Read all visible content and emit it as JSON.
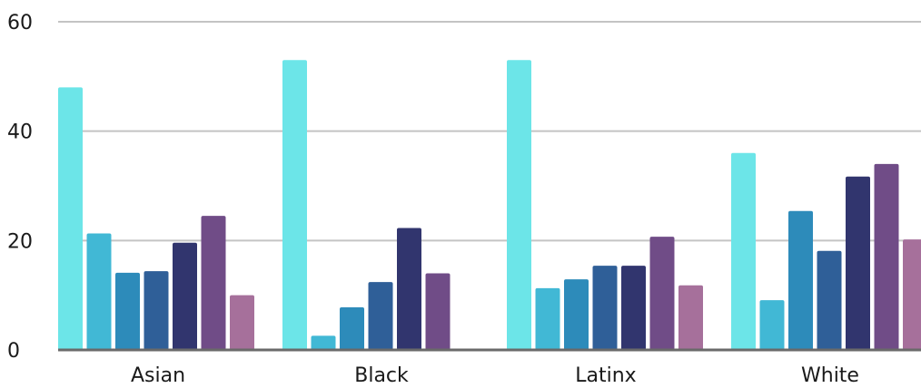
{
  "chart_data": {
    "type": "bar",
    "title": "",
    "xlabel": "",
    "ylabel": "",
    "ylim": [
      0,
      60
    ],
    "yticks": [
      0,
      20,
      40,
      60
    ],
    "grid": true,
    "legend": "none",
    "categories": [
      "Asian",
      "Black",
      "Latinx",
      "White"
    ],
    "series": [
      {
        "color": "#6ce5e8",
        "values": [
          48,
          53,
          53,
          36
        ]
      },
      {
        "color": "#41b8d5",
        "values": [
          21.3,
          2.6,
          11.3,
          9.1
        ]
      },
      {
        "color": "#2d8bba",
        "values": [
          14.1,
          7.8,
          12.9,
          25.4
        ]
      },
      {
        "color": "#2f5f98",
        "values": [
          14.4,
          12.4,
          15.4,
          18.1
        ]
      },
      {
        "color": "#31356e",
        "values": [
          19.6,
          22.3,
          15.4,
          31.7
        ]
      },
      {
        "color": "#704c87",
        "values": [
          24.5,
          14.0,
          20.7,
          34.0
        ]
      },
      {
        "color": "#a6709b",
        "values": [
          10.0,
          null,
          11.8,
          20.2
        ]
      }
    ]
  }
}
